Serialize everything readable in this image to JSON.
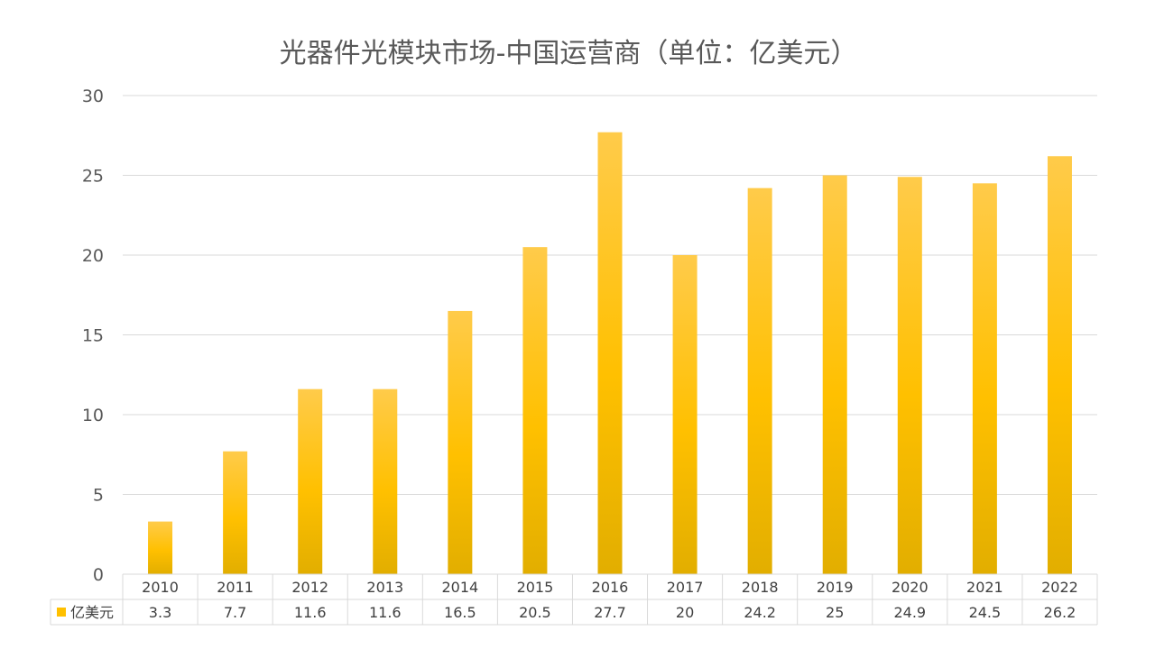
{
  "chart_data": {
    "type": "bar",
    "title": "光器件光模块市场-中国运营商（单位：亿美元）",
    "categories": [
      "2010",
      "2011",
      "2012",
      "2013",
      "2014",
      "2015",
      "2016",
      "2017",
      "2018",
      "2019",
      "2020",
      "2021",
      "2022"
    ],
    "series": [
      {
        "name": "亿美元",
        "values": [
          3.3,
          7.7,
          11.6,
          11.6,
          16.5,
          20.5,
          27.7,
          20,
          24.2,
          25,
          24.9,
          24.5,
          26.2
        ]
      }
    ],
    "value_labels": [
      "3.3",
      "7.7",
      "11.6",
      "11.6",
      "16.5",
      "20.5",
      "27.7",
      "20",
      "24.2",
      "25",
      "24.9",
      "24.5",
      "26.2"
    ],
    "ylim": [
      0,
      30
    ],
    "yticks": [
      0,
      5,
      10,
      15,
      20,
      25,
      30
    ],
    "grid": true,
    "legend": "data-table",
    "bar_color": "#FFC000"
  }
}
